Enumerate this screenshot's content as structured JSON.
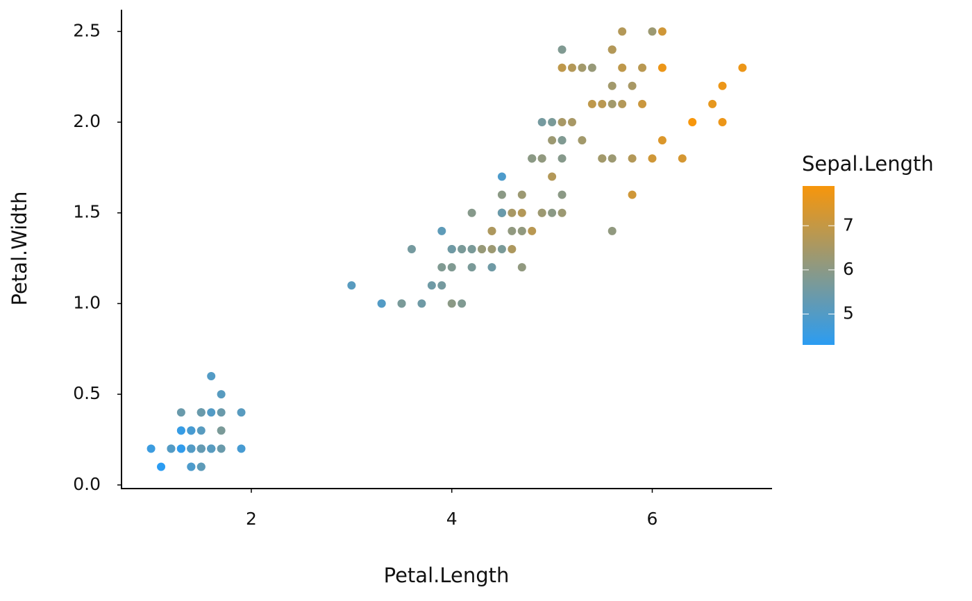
{
  "chart_data": {
    "type": "scatter",
    "x_label": "Petal.Length",
    "y_label": "Petal.Width",
    "x": [
      1.4,
      1.4,
      1.3,
      1.5,
      1.4,
      1.7,
      1.4,
      1.5,
      1.4,
      1.5,
      1.5,
      1.6,
      1.4,
      1.1,
      1.2,
      1.5,
      1.3,
      1.4,
      1.7,
      1.5,
      1.7,
      1.5,
      1.0,
      1.7,
      1.9,
      1.6,
      1.6,
      1.5,
      1.4,
      1.6,
      1.6,
      1.5,
      1.5,
      1.4,
      1.5,
      1.2,
      1.3,
      1.4,
      1.3,
      1.5,
      1.3,
      1.3,
      1.3,
      1.6,
      1.9,
      1.4,
      1.6,
      1.4,
      1.5,
      1.4,
      4.7,
      4.5,
      4.9,
      4.0,
      4.6,
      4.5,
      4.7,
      3.3,
      4.6,
      3.9,
      3.5,
      4.2,
      4.0,
      4.7,
      3.6,
      4.4,
      4.5,
      4.1,
      4.5,
      3.9,
      4.8,
      4.0,
      4.9,
      4.7,
      4.3,
      4.4,
      4.8,
      5.0,
      4.5,
      3.5,
      3.8,
      3.7,
      3.9,
      5.1,
      4.5,
      4.5,
      4.7,
      4.4,
      4.1,
      4.0,
      4.4,
      4.6,
      4.0,
      3.3,
      4.2,
      4.2,
      4.2,
      4.3,
      3.0,
      4.1,
      6.0,
      5.1,
      5.9,
      5.6,
      5.8,
      6.6,
      4.5,
      6.3,
      5.8,
      6.1,
      5.1,
      5.3,
      5.5,
      5.0,
      5.1,
      5.3,
      5.5,
      6.7,
      6.9,
      5.0,
      5.7,
      4.9,
      6.7,
      4.9,
      5.7,
      6.0,
      4.8,
      4.9,
      5.6,
      5.8,
      6.1,
      6.4,
      5.6,
      5.1,
      5.6,
      6.1,
      5.6,
      5.5,
      4.8,
      5.4,
      5.6,
      5.1,
      5.1,
      5.9,
      5.7,
      5.2,
      5.0,
      5.2,
      5.4,
      5.1
    ],
    "values": [
      0.2,
      0.2,
      0.2,
      0.2,
      0.2,
      0.4,
      0.3,
      0.2,
      0.2,
      0.1,
      0.2,
      0.2,
      0.1,
      0.1,
      0.2,
      0.4,
      0.4,
      0.3,
      0.3,
      0.3,
      0.2,
      0.4,
      0.2,
      0.5,
      0.2,
      0.2,
      0.4,
      0.2,
      0.2,
      0.2,
      0.2,
      0.4,
      0.1,
      0.2,
      0.2,
      0.2,
      0.2,
      0.1,
      0.2,
      0.2,
      0.3,
      0.3,
      0.2,
      0.6,
      0.4,
      0.3,
      0.2,
      0.2,
      0.2,
      0.2,
      1.4,
      1.5,
      1.5,
      1.3,
      1.5,
      1.3,
      1.6,
      1.0,
      1.3,
      1.4,
      1.0,
      1.5,
      1.0,
      1.4,
      1.3,
      1.4,
      1.5,
      1.0,
      1.5,
      1.1,
      1.8,
      1.3,
      1.5,
      1.2,
      1.3,
      1.4,
      1.4,
      1.7,
      1.5,
      1.0,
      1.1,
      1.0,
      1.2,
      1.6,
      1.5,
      1.6,
      1.5,
      1.3,
      1.3,
      1.3,
      1.2,
      1.4,
      1.2,
      1.0,
      1.3,
      1.2,
      1.3,
      1.3,
      1.1,
      1.3,
      2.5,
      1.9,
      2.1,
      1.8,
      2.2,
      2.1,
      1.7,
      1.8,
      1.8,
      2.5,
      2.0,
      1.9,
      2.1,
      2.0,
      2.4,
      2.3,
      1.8,
      2.2,
      2.3,
      1.5,
      2.3,
      2.0,
      2.0,
      1.8,
      2.1,
      1.8,
      1.8,
      1.8,
      2.1,
      1.6,
      1.9,
      2.0,
      2.2,
      1.5,
      1.4,
      2.3,
      2.4,
      1.8,
      1.8,
      2.1,
      2.4,
      2.3,
      1.9,
      2.3,
      2.5,
      2.3,
      1.9,
      2.0,
      2.3,
      1.8
    ],
    "color_values": [
      5.1,
      4.9,
      4.7,
      4.6,
      5.0,
      5.4,
      4.6,
      5.0,
      4.4,
      4.9,
      5.4,
      4.8,
      4.8,
      4.3,
      5.8,
      5.7,
      5.4,
      5.1,
      5.7,
      5.1,
      5.4,
      5.1,
      4.6,
      5.1,
      4.8,
      5.0,
      5.0,
      5.2,
      5.2,
      4.7,
      4.8,
      5.4,
      5.2,
      5.5,
      4.9,
      5.0,
      5.5,
      4.9,
      4.4,
      5.1,
      5.0,
      4.5,
      4.4,
      5.0,
      5.1,
      4.8,
      5.1,
      4.6,
      5.3,
      5.0,
      7.0,
      6.4,
      6.9,
      5.5,
      6.5,
      5.7,
      6.3,
      4.9,
      6.6,
      5.2,
      5.0,
      5.9,
      6.0,
      6.1,
      5.6,
      6.7,
      5.6,
      5.8,
      6.2,
      5.6,
      5.9,
      6.1,
      6.3,
      6.1,
      6.4,
      6.6,
      6.8,
      6.7,
      6.0,
      5.7,
      5.5,
      5.5,
      5.8,
      6.0,
      5.4,
      6.0,
      6.7,
      6.3,
      5.6,
      5.5,
      5.5,
      6.1,
      5.8,
      5.0,
      5.6,
      5.7,
      5.7,
      6.2,
      5.1,
      5.7,
      6.3,
      5.8,
      7.1,
      6.3,
      6.5,
      7.6,
      4.9,
      7.3,
      6.7,
      7.2,
      6.5,
      6.4,
      6.8,
      5.7,
      5.8,
      6.4,
      6.5,
      7.7,
      7.7,
      6.0,
      6.9,
      5.6,
      7.7,
      6.3,
      6.7,
      7.2,
      6.2,
      6.1,
      6.4,
      7.2,
      7.4,
      7.9,
      6.4,
      6.3,
      6.1,
      7.7,
      6.3,
      6.4,
      6.0,
      6.9,
      6.7,
      6.9,
      5.8,
      6.8,
      6.7,
      6.7,
      6.3,
      6.5,
      6.2,
      5.9
    ],
    "colorscale": {
      "name": "Sepal.Length",
      "low": "#2b9cf2",
      "high": "#f7960b",
      "lim": [
        4.3,
        7.9
      ],
      "ticks": [
        5,
        6,
        7
      ]
    },
    "xlim": [
      0.705,
      7.195
    ],
    "xticks": [
      2,
      4,
      6
    ],
    "ylim": [
      -0.02,
      2.62
    ],
    "yticks": [
      {
        "value": 0,
        "label": "0.0"
      },
      0.5,
      {
        "value": 1,
        "label": "1.0"
      },
      1.5,
      {
        "value": 2,
        "label": "2.0"
      },
      2.5
    ],
    "grid": false
  }
}
